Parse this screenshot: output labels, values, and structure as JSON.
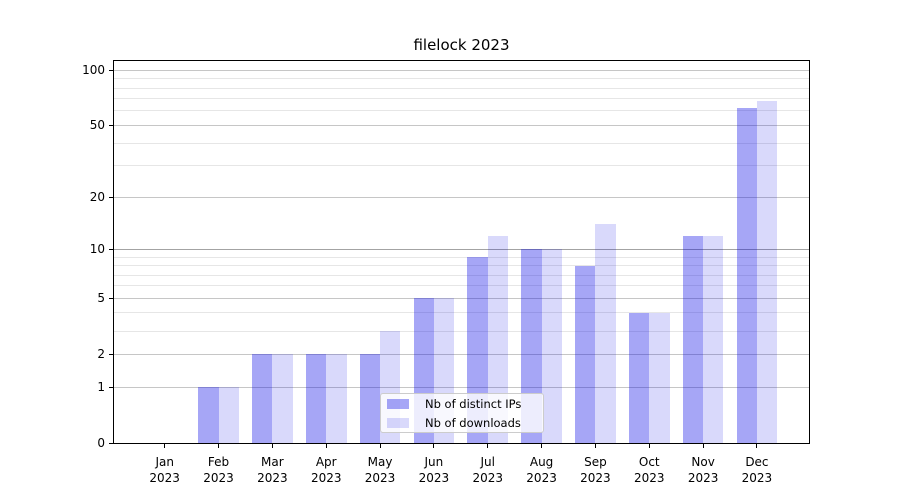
{
  "chart_data": {
    "type": "bar",
    "title": "filelock 2023",
    "categories": [
      "Jan",
      "Feb",
      "Mar",
      "Apr",
      "May",
      "Jun",
      "Jul",
      "Aug",
      "Sep",
      "Oct",
      "Nov",
      "Dec"
    ],
    "category_year": "2023",
    "series": [
      {
        "name": "Nb of distinct IPs",
        "color": "rgba(0,0,230,0.35)",
        "values": [
          0,
          1,
          2,
          2,
          2,
          5,
          9,
          10,
          8,
          4,
          12,
          62
        ]
      },
      {
        "name": "Nb of downloads",
        "color": "rgba(0,0,230,0.15)",
        "values": [
          0,
          1,
          2,
          2,
          3,
          5,
          12,
          10,
          14,
          4,
          12,
          68
        ]
      }
    ],
    "yscale": "log1p",
    "ylim": [
      0,
      110
    ],
    "y_ticks": [
      0,
      1,
      2,
      5,
      10,
      20,
      50,
      100
    ],
    "y_minor_ticks": [
      3,
      4,
      6,
      7,
      8,
      9,
      30,
      40,
      60,
      70,
      80,
      90
    ],
    "xlabel": "",
    "ylabel": "",
    "grid": true,
    "legend_position": "lower center",
    "colors": {
      "major_grid": "#c6c6c6",
      "emph_grid": "#a3a3a3",
      "minor_grid": "#e6e6e6",
      "axis": "#000000",
      "background": "#ffffff"
    }
  }
}
